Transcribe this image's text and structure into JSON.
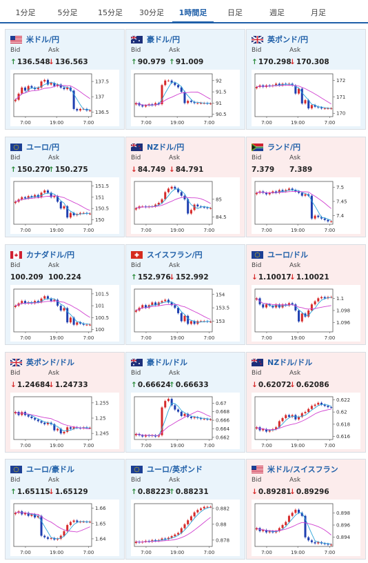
{
  "tabs": [
    {
      "label": "1分足",
      "active": false
    },
    {
      "label": "5分足",
      "active": false
    },
    {
      "label": "15分足",
      "active": false
    },
    {
      "label": "30分足",
      "active": false
    },
    {
      "label": "1時間足",
      "active": true
    },
    {
      "label": "日足",
      "active": false
    },
    {
      "label": "週足",
      "active": false
    },
    {
      "label": "月足",
      "active": false
    }
  ],
  "labels": {
    "bid": "Bid",
    "ask": "Ask"
  },
  "colors": {
    "up": "#2a8a3a",
    "down": "#d62a2a",
    "link": "#1f5fa8",
    "accent_tab": "#1f5fa8",
    "card_up_bg": "#eaf4fb",
    "card_down_bg": "#fcecec"
  },
  "cards": [
    {
      "pair": "米ドル/円",
      "flags": [
        "us-flag",
        "jp-flag"
      ],
      "trend": "up",
      "bid": "136.548",
      "bid_dir": "up",
      "ask": "136.563",
      "ask_dir": "down",
      "chart_data": {
        "type": "candlestick",
        "x_ticks": [
          "7:00",
          "19:00",
          "7:00"
        ],
        "y_ticks": [
          "137.5",
          "137",
          "136.5"
        ],
        "ylim": [
          136.35,
          137.75
        ],
        "closes": [
          136.9,
          137.1,
          137.3,
          137.2,
          137.35,
          137.3,
          137.25,
          137.3,
          137.5,
          137.55,
          137.4,
          137.45,
          137.35,
          137.4,
          137.3,
          137.25,
          137.3,
          137.2,
          136.6,
          136.55,
          136.6,
          136.6,
          136.55,
          136.55
        ]
      }
    },
    {
      "pair": "豪ドル/円",
      "flags": [
        "au-flag",
        "jp-flag"
      ],
      "trend": "up",
      "bid": "90.979",
      "bid_dir": "up",
      "ask": "91.009",
      "ask_dir": "up",
      "chart_data": {
        "type": "candlestick",
        "x_ticks": [
          "7:00",
          "19:00",
          "7:00"
        ],
        "y_ticks": [
          "92",
          "91.5",
          "91",
          "90.5"
        ],
        "ylim": [
          90.4,
          92.3
        ],
        "closes": [
          91.0,
          90.9,
          90.85,
          90.9,
          90.95,
          90.9,
          91.0,
          90.95,
          91.8,
          92.0,
          92.0,
          91.9,
          91.8,
          91.7,
          91.5,
          91.0,
          91.1,
          91.05,
          91.0,
          91.0,
          91.0,
          91.0,
          90.98,
          90.98
        ]
      }
    },
    {
      "pair": "英ポンド/円",
      "flags": [
        "gb-flag",
        "jp-flag"
      ],
      "trend": "up",
      "bid": "170.298",
      "bid_dir": "up",
      "ask": "170.308",
      "ask_dir": "down",
      "chart_data": {
        "type": "candlestick",
        "x_ticks": [
          "7:00",
          "19:00",
          "7:00"
        ],
        "y_ticks": [
          "172",
          "171",
          "170"
        ],
        "ylim": [
          169.8,
          172.4
        ],
        "closes": [
          171.6,
          171.7,
          171.6,
          171.7,
          171.65,
          171.7,
          171.8,
          171.7,
          171.8,
          171.75,
          171.8,
          171.7,
          171.2,
          171.5,
          170.6,
          170.8,
          170.3,
          170.5,
          170.4,
          170.35,
          170.3,
          170.3,
          170.3,
          170.3
        ]
      }
    },
    {
      "pair": "ユーロ/円",
      "flags": [
        "eu-flag",
        "jp-flag"
      ],
      "trend": "up",
      "bid": "150.270",
      "bid_dir": "up",
      "ask": "150.275",
      "ask_dir": "up",
      "chart_data": {
        "type": "candlestick",
        "x_ticks": [
          "7:00",
          "19:00",
          "7:00"
        ],
        "y_ticks": [
          "151.5",
          "151",
          "150.5",
          "150"
        ],
        "ylim": [
          149.8,
          151.7
        ],
        "closes": [
          150.8,
          150.9,
          151.0,
          150.95,
          151.05,
          151.0,
          151.1,
          151.0,
          151.2,
          151.3,
          151.2,
          151.0,
          151.05,
          150.8,
          150.5,
          150.6,
          150.1,
          150.3,
          150.2,
          150.25,
          150.3,
          150.3,
          150.27,
          150.27
        ]
      }
    },
    {
      "pair": "NZドル/円",
      "flags": [
        "nz-flag",
        "jp-flag"
      ],
      "trend": "down",
      "bid": "84.749",
      "bid_dir": "down",
      "ask": "84.791",
      "ask_dir": "down",
      "chart_data": {
        "type": "candlestick",
        "x_ticks": [
          "7:00",
          "19:00",
          "7:00"
        ],
        "y_ticks": [
          "85",
          "84.5"
        ],
        "ylim": [
          84.3,
          85.5
        ],
        "closes": [
          84.75,
          84.8,
          84.8,
          84.78,
          84.8,
          84.8,
          84.85,
          84.9,
          85.0,
          85.2,
          85.3,
          85.35,
          85.3,
          85.2,
          85.1,
          85.0,
          84.6,
          84.7,
          84.85,
          84.8,
          84.78,
          84.77,
          84.75,
          84.75
        ]
      }
    },
    {
      "pair": "ランド/円",
      "flags": [
        "za-flag",
        "jp-flag"
      ],
      "trend": "down",
      "bid": "7.379",
      "bid_dir": "",
      "ask": "7.389",
      "ask_dir": "",
      "chart_data": {
        "type": "candlestick",
        "x_ticks": [
          "7:00",
          "19:00",
          "7:00"
        ],
        "y_ticks": [
          "7.5",
          "7.45",
          "7.4"
        ],
        "ylim": [
          7.37,
          7.52
        ],
        "closes": [
          7.48,
          7.485,
          7.48,
          7.475,
          7.48,
          7.485,
          7.48,
          7.49,
          7.485,
          7.49,
          7.495,
          7.49,
          7.485,
          7.48,
          7.47,
          7.475,
          7.47,
          7.39,
          7.4,
          7.395,
          7.39,
          7.385,
          7.38,
          7.38
        ]
      }
    },
    {
      "pair": "カナダドル/円",
      "flags": [
        "ca-flag",
        "jp-flag"
      ],
      "trend": "up",
      "bid": "100.209",
      "bid_dir": "",
      "ask": "100.224",
      "ask_dir": "",
      "chart_data": {
        "type": "candlestick",
        "x_ticks": [
          "7:00",
          "19:00",
          "7:00"
        ],
        "y_ticks": [
          "101.5",
          "101",
          "100.5",
          "100"
        ],
        "ylim": [
          99.9,
          101.7
        ],
        "closes": [
          101.0,
          101.1,
          101.2,
          101.1,
          101.15,
          101.1,
          101.2,
          101.15,
          101.3,
          101.4,
          101.3,
          101.2,
          101.25,
          101.0,
          100.8,
          100.9,
          100.3,
          100.5,
          100.2,
          100.3,
          100.25,
          100.2,
          100.2,
          100.2
        ]
      }
    },
    {
      "pair": "スイスフラン/円",
      "flags": [
        "ch-flag",
        "jp-flag"
      ],
      "trend": "up",
      "bid": "152.976",
      "bid_dir": "up",
      "ask": "152.992",
      "ask_dir": "down",
      "chart_data": {
        "type": "candlestick",
        "x_ticks": [
          "7:00",
          "19:00",
          "7:00"
        ],
        "y_ticks": [
          "154",
          "153.5",
          "153"
        ],
        "ylim": [
          152.6,
          154.2
        ],
        "closes": [
          153.4,
          153.5,
          153.6,
          153.5,
          153.6,
          153.7,
          153.6,
          153.7,
          153.75,
          153.8,
          153.7,
          153.6,
          153.5,
          153.3,
          153.0,
          153.2,
          152.9,
          153.0,
          152.9,
          153.0,
          153.0,
          153.0,
          152.98,
          152.98
        ]
      }
    },
    {
      "pair": "ユーロ/ドル",
      "flags": [
        "eu-flag",
        "us-flag"
      ],
      "trend": "down",
      "bid": "1.10017",
      "bid_dir": "down",
      "ask": "1.10021",
      "ask_dir": "down",
      "chart_data": {
        "type": "candlestick",
        "x_ticks": [
          "7:00",
          "19:00",
          "7:00"
        ],
        "y_ticks": [
          "1.1",
          "1.098",
          "1.096"
        ],
        "ylim": [
          1.0945,
          1.1015
        ],
        "closes": [
          1.1,
          1.099,
          1.0985,
          1.099,
          1.0988,
          1.0985,
          1.099,
          1.0985,
          1.099,
          1.0988,
          1.0992,
          1.099,
          1.098,
          1.0962,
          1.0975,
          1.097,
          1.098,
          1.099,
          1.0995,
          1.1,
          1.1002,
          1.1,
          1.1002,
          1.1002
        ]
      }
    },
    {
      "pair": "英ポンド/ドル",
      "flags": [
        "gb-flag",
        "us-flag"
      ],
      "trend": "down",
      "bid": "1.24684",
      "bid_dir": "down",
      "ask": "1.24733",
      "ask_dir": "down",
      "chart_data": {
        "type": "candlestick",
        "x_ticks": [
          "7:00",
          "19:00",
          "7:00"
        ],
        "y_ticks": [
          "1.255",
          "1.25",
          "1.245"
        ],
        "ylim": [
          1.243,
          1.257
        ],
        "closes": [
          1.252,
          1.251,
          1.252,
          1.251,
          1.2505,
          1.25,
          1.2495,
          1.249,
          1.2485,
          1.248,
          1.2485,
          1.248,
          1.246,
          1.2465,
          1.245,
          1.2455,
          1.247,
          1.2465,
          1.247,
          1.2468,
          1.2467,
          1.247,
          1.2468,
          1.2468
        ]
      }
    },
    {
      "pair": "豪ドル/ドル",
      "flags": [
        "au-flag",
        "us-flag"
      ],
      "trend": "up",
      "bid": "0.66624",
      "bid_dir": "up",
      "ask": "0.66633",
      "ask_dir": "up",
      "chart_data": {
        "type": "candlestick",
        "x_ticks": [
          "7:00",
          "19:00",
          "7:00"
        ],
        "y_ticks": [
          "0.67",
          "0.668",
          "0.666",
          "0.664",
          "0.662"
        ],
        "ylim": [
          0.6615,
          0.6715
        ],
        "closes": [
          0.6628,
          0.6625,
          0.6622,
          0.6625,
          0.6623,
          0.6625,
          0.6622,
          0.6625,
          0.669,
          0.6705,
          0.671,
          0.6695,
          0.6685,
          0.668,
          0.667,
          0.6675,
          0.6668,
          0.6665,
          0.6667,
          0.6665,
          0.6663,
          0.6663,
          0.6662,
          0.6662
        ]
      }
    },
    {
      "pair": "NZドル/ドル",
      "flags": [
        "nz-flag",
        "us-flag"
      ],
      "trend": "down",
      "bid": "0.62072",
      "bid_dir": "down",
      "ask": "0.62086",
      "ask_dir": "down",
      "chart_data": {
        "type": "candlestick",
        "x_ticks": [
          "7:00",
          "19:00",
          "7:00"
        ],
        "y_ticks": [
          "0.622",
          "0.62",
          "0.618",
          "0.616"
        ],
        "ylim": [
          0.6155,
          0.6225
        ],
        "closes": [
          0.6175,
          0.617,
          0.6172,
          0.6168,
          0.617,
          0.6172,
          0.6175,
          0.6185,
          0.619,
          0.6195,
          0.6192,
          0.6195,
          0.6188,
          0.6192,
          0.6198,
          0.62,
          0.6205,
          0.621,
          0.6212,
          0.6215,
          0.6212,
          0.621,
          0.6208,
          0.6207
        ]
      }
    },
    {
      "pair": "ユーロ/豪ドル",
      "flags": [
        "eu-flag",
        "au-flag"
      ],
      "trend": "up",
      "bid": "1.65115",
      "bid_dir": "up",
      "ask": "1.65129",
      "ask_dir": "down",
      "chart_data": {
        "type": "candlestick",
        "x_ticks": [
          "7:00",
          "19:00",
          "7:00"
        ],
        "y_ticks": [
          "1.66",
          "1.65",
          "1.64"
        ],
        "ylim": [
          1.635,
          1.663
        ],
        "closes": [
          1.657,
          1.658,
          1.656,
          1.657,
          1.655,
          1.656,
          1.654,
          1.655,
          1.642,
          1.641,
          1.64,
          1.6405,
          1.6395,
          1.64,
          1.642,
          1.645,
          1.649,
          1.651,
          1.652,
          1.651,
          1.6512,
          1.6512,
          1.6511,
          1.6511
        ]
      }
    },
    {
      "pair": "ユーロ/英ポンド",
      "flags": [
        "eu-flag",
        "gb-flag"
      ],
      "trend": "up",
      "bid": "0.88223",
      "bid_dir": "up",
      "ask": "0.88231",
      "ask_dir": "up",
      "chart_data": {
        "type": "candlestick",
        "x_ticks": [
          "7:00",
          "19:00",
          "7:00"
        ],
        "y_ticks": [
          "0.882",
          "0.88",
          "0.878"
        ],
        "ylim": [
          0.8772,
          0.8826
        ],
        "closes": [
          0.8778,
          0.8777,
          0.8778,
          0.8779,
          0.8778,
          0.878,
          0.8779,
          0.878,
          0.8782,
          0.8781,
          0.8783,
          0.8785,
          0.8787,
          0.8789,
          0.8795,
          0.88,
          0.8805,
          0.881,
          0.8815,
          0.8818,
          0.882,
          0.8822,
          0.8822,
          0.8822
        ]
      }
    },
    {
      "pair": "米ドル/スイスフラン",
      "flags": [
        "us-flag",
        "ch-flag"
      ],
      "trend": "down",
      "bid": "0.89281",
      "bid_dir": "down",
      "ask": "0.89296",
      "ask_dir": "down",
      "chart_data": {
        "type": "candlestick",
        "x_ticks": [
          "7:00",
          "19:00",
          "7:00"
        ],
        "y_ticks": [
          "0.898",
          "0.896",
          "0.894"
        ],
        "ylim": [
          0.8925,
          0.8995
        ],
        "closes": [
          0.8955,
          0.895,
          0.8952,
          0.8948,
          0.895,
          0.8948,
          0.895,
          0.8955,
          0.896,
          0.8965,
          0.8975,
          0.898,
          0.8985,
          0.898,
          0.8975,
          0.894,
          0.8935,
          0.8932,
          0.893,
          0.8932,
          0.893,
          0.8929,
          0.8928,
          0.8928
        ]
      }
    }
  ]
}
